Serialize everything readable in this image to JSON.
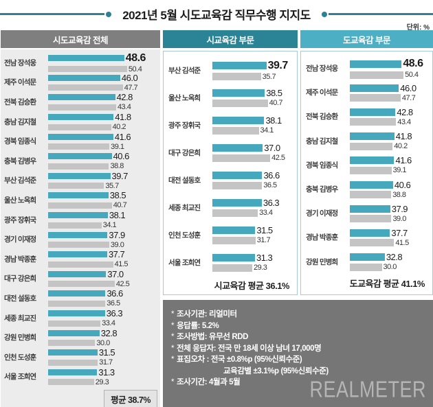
{
  "title": "2021년 5월 시도교육감 직무수행 지지도",
  "unit_label": "단위: %",
  "colors": {
    "accent_teal": "#2e8193",
    "bar_teal": "#45a8bd",
    "bar_gray": "#c4c4c4",
    "header_all_bg": "#7f7f7f",
    "header_city_bg": "#2a8496",
    "header_province_bg": "#4cafc3",
    "panel_border": "#a5cbd8",
    "info_bg": "#767676"
  },
  "chart_data": [
    {
      "type": "bar",
      "orientation": "horizontal",
      "title": "시도교육감 전체",
      "categories": [
        "전남 장석웅",
        "제주 이석문",
        "전북 김승환",
        "충남 김지철",
        "경북 임종식",
        "충북 김병우",
        "부산 김석준",
        "울산 노옥희",
        "광주 장휘국",
        "경기 이재정",
        "경남 박종훈",
        "대구 강은희",
        "대전 설동호",
        "세종 최교진",
        "강원 민병희",
        "인천 도성훈",
        "서울 조희연"
      ],
      "series": [
        {
          "name": "teal",
          "values": [
            48.6,
            46.0,
            42.8,
            41.8,
            41.6,
            40.6,
            39.7,
            38.5,
            38.1,
            37.9,
            37.7,
            37.0,
            36.6,
            36.3,
            32.8,
            31.5,
            31.3
          ]
        },
        {
          "name": "gray",
          "values": [
            50.4,
            47.7,
            43.4,
            40.2,
            39.1,
            38.8,
            35.7,
            40.7,
            34.1,
            39.0,
            41.5,
            42.5,
            36.5,
            33.4,
            30.0,
            31.7,
            29.3
          ]
        }
      ],
      "average_label": "평균 38.7%",
      "xlim": [
        0,
        55
      ],
      "grid": false
    },
    {
      "type": "bar",
      "orientation": "horizontal",
      "title": "시교육감 부문",
      "categories": [
        "부산 김석준",
        "울산 노옥희",
        "광주 장휘국",
        "대구 강은희",
        "대전 설동호",
        "세종 최교진",
        "인천 도성훈",
        "서울 조희연"
      ],
      "series": [
        {
          "name": "teal",
          "values": [
            39.7,
            38.5,
            38.1,
            37.0,
            36.6,
            36.3,
            31.5,
            31.3
          ]
        },
        {
          "name": "gray",
          "values": [
            35.7,
            40.7,
            34.1,
            42.5,
            36.5,
            33.4,
            31.7,
            29.3
          ]
        }
      ],
      "average_label": "시교육감 평균 36.1%",
      "xlim": [
        0,
        55
      ],
      "grid": false
    },
    {
      "type": "bar",
      "orientation": "horizontal",
      "title": "도교육감 부문",
      "categories": [
        "전남 장석웅",
        "제주 이석문",
        "전북 김승환",
        "충남 김지철",
        "경북 임종식",
        "충북 김병우",
        "경기 이재정",
        "경남 박종훈",
        "강원 민병희"
      ],
      "series": [
        {
          "name": "teal",
          "values": [
            48.6,
            46.0,
            42.8,
            41.8,
            41.6,
            40.6,
            37.9,
            37.7,
            32.8
          ]
        },
        {
          "name": "gray",
          "values": [
            50.4,
            47.7,
            43.4,
            40.2,
            39.1,
            38.8,
            39.0,
            41.5,
            30.0
          ]
        }
      ],
      "average_label": "도교육감 평균 41.1%",
      "xlim": [
        0,
        55
      ],
      "grid": false
    }
  ],
  "headers": {
    "all": "시도교육감 전체",
    "city": "시교육감 부문",
    "province": "도교육감 부문"
  },
  "footnotes": [
    {
      "bullet": "*",
      "text": "조사기관: 리얼미터",
      "indent": false
    },
    {
      "bullet": "*",
      "text": "응답률: 5.2%",
      "indent": false
    },
    {
      "bullet": "*",
      "text": "조사방법: 유무선 RDD",
      "indent": false
    },
    {
      "bullet": "*",
      "text": "전체 응답자: 전국 만 18세 이상 남녀 17,000명",
      "indent": false
    },
    {
      "bullet": "*",
      "text": "표집오차 : 전국 ±0.8%p (95%신뢰수준)",
      "indent": false
    },
    {
      "bullet": "",
      "text": "교육감별 ±3.1%p (95%신뢰수준)",
      "indent": true
    },
    {
      "bullet": "*",
      "text": "조사기간: 4월과 5월",
      "indent": false
    }
  ],
  "logo_text": "REALMETER"
}
